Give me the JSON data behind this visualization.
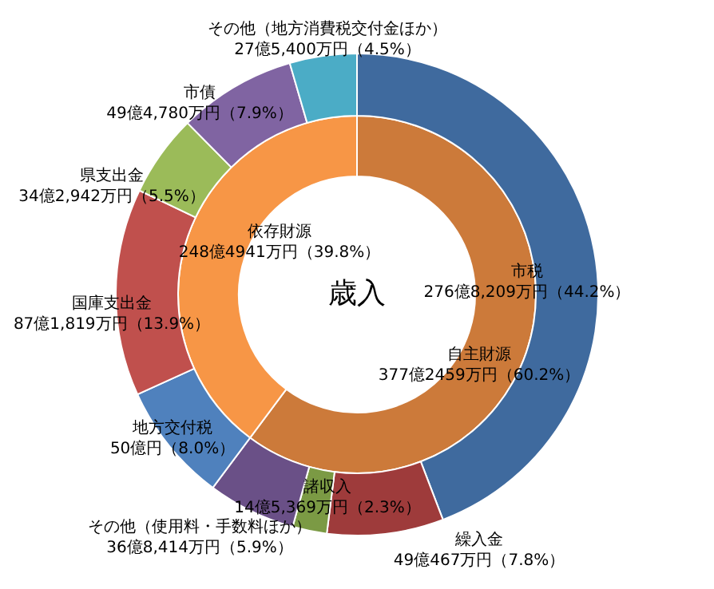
{
  "chart_data": [
    {
      "type": "donut",
      "categories": [
        "市税",
        "繰入金",
        "諸収入",
        "その他（使用料・手数料ほか）",
        "地方交付税",
        "国庫支出金",
        "県支出金",
        "市債",
        "その他（地方消費税交付金ほか）"
      ],
      "values": [
        44.2,
        7.8,
        2.3,
        5.9,
        8.0,
        13.9,
        5.5,
        7.9,
        4.5
      ],
      "colors": [
        "#3f6a9e",
        "#9e3b3b",
        "#7b9a44",
        "#6a5087",
        "#4f81bd",
        "#c0504d",
        "#9bbb59",
        "#8064a2",
        "#4bacc6"
      ],
      "value_labels": [
        "276億8,209万円（44.2%）",
        "49億467万円（7.8%）",
        "14億5,369万円（2.3%）",
        "36億8,414万円（5.9%）",
        "50億円（8.0%）",
        "87億1,819万円（13.9%）",
        "34億2,942万円（5.5%）",
        "49億4,780万円（7.9%）",
        "27億5,400万円（4.5%）"
      ]
    },
    {
      "type": "donut",
      "title": "歳入",
      "categories": [
        "自主財源",
        "依存財源"
      ],
      "values": [
        60.2,
        39.8
      ],
      "colors": [
        "#cc7a3a",
        "#f79646"
      ],
      "value_labels": [
        "377億2459万円（60.2%）",
        "248億4941万円（39.8%）"
      ]
    }
  ]
}
